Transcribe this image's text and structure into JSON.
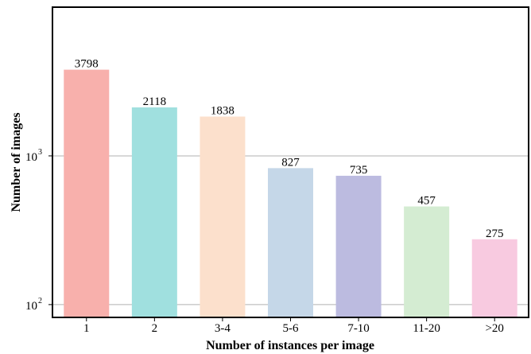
{
  "chart_data": {
    "type": "bar",
    "categories": [
      "1",
      "2",
      "3-4",
      "5-6",
      "7-10",
      "11-20",
      ">20"
    ],
    "values": [
      3798,
      2118,
      1838,
      827,
      735,
      457,
      275
    ],
    "value_labels": [
      "3798",
      "2118",
      "1838",
      "827",
      "735",
      "457",
      "275"
    ],
    "colors": [
      "#f8b0ac",
      "#a0e0df",
      "#fce0cc",
      "#c5d7e8",
      "#bcbbe0",
      "#d4ecd2",
      "#f8cae0"
    ],
    "xlabel": "Number of instances per image",
    "ylabel": "Number of images",
    "yscale": "log",
    "ylim": [
      82,
      10000
    ],
    "yticks": [
      {
        "value": 100,
        "label_base": "10",
        "label_exp": "2"
      },
      {
        "value": 1000,
        "label_base": "10",
        "label_exp": "3"
      }
    ],
    "grid": "horizontal at major ticks",
    "legend": "none"
  }
}
